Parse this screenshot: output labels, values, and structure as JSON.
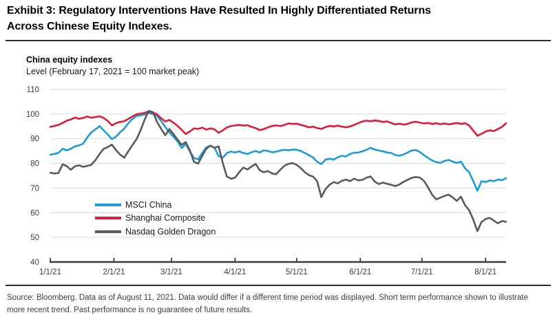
{
  "exhibit": {
    "title_line1": "Exhibit 3: Regulatory Interventions Have Resulted In Highly Differentiated Returns",
    "title_line2": "Across Chinese Equity Indexes."
  },
  "chart_header": {
    "title": "China equity indexes",
    "subtitle": "Level (February 17, 2021 = 100 market peak)"
  },
  "footer": {
    "source": "Source: Bloomberg. Data as of August 11, 2021. Data would differ if a different time period was displayed. Short term performance shown to illustrate more recent trend. Past performance is no guarantee of future results."
  },
  "colors": {
    "msci_blue": "#1b9cd9",
    "shanghai_red": "#e01a3b",
    "nasdaq_gray": "#58595b",
    "grid": "#d9d9d9",
    "axis": "#3a3a3a",
    "rule": "#2b2b2b"
  },
  "chart_data": {
    "type": "line",
    "title": "China equity indexes",
    "subtitle": "Level (February 17, 2021 = 100 market peak)",
    "ylim": [
      40,
      110
    ],
    "yticks": [
      110,
      100,
      90,
      80,
      70,
      60,
      50,
      40
    ],
    "grid": true,
    "legend_position": "inside-lower-left",
    "x_unit": "days since 1/1/21; data through 8/11/21",
    "xtick_days": [
      0,
      31,
      59,
      90,
      120,
      151,
      181,
      212
    ],
    "xtick_labels": [
      "1/1/21",
      "2/1/21",
      "3/1/21",
      "4/1/21",
      "5/1/21",
      "6/1/21",
      "7/1/21",
      "8/1/21"
    ],
    "x_days": [
      0,
      2,
      4,
      6,
      8,
      10,
      12,
      14,
      16,
      18,
      20,
      22,
      24,
      26,
      28,
      30,
      32,
      34,
      36,
      38,
      40,
      42,
      44,
      46,
      48,
      50,
      52,
      54,
      56,
      58,
      60,
      62,
      64,
      66,
      68,
      70,
      72,
      74,
      76,
      78,
      80,
      82,
      84,
      86,
      88,
      90,
      92,
      94,
      96,
      98,
      100,
      102,
      104,
      106,
      108,
      110,
      112,
      114,
      116,
      118,
      120,
      122,
      124,
      126,
      128,
      130,
      132,
      134,
      136,
      138,
      140,
      142,
      144,
      146,
      148,
      150,
      152,
      154,
      156,
      158,
      160,
      162,
      164,
      166,
      168,
      170,
      172,
      174,
      176,
      178,
      180,
      182,
      184,
      186,
      188,
      190,
      192,
      194,
      196,
      198,
      200,
      202,
      204,
      206,
      208,
      210,
      212,
      214,
      216,
      218,
      220,
      222
    ],
    "series": [
      {
        "name": "MSCI China",
        "color": "#1b9cd9",
        "values": [
          83.5,
          83.8,
          84.3,
          85.9,
          85.3,
          85.9,
          86.9,
          87.3,
          88.0,
          90.5,
          92.6,
          93.8,
          95.1,
          93.4,
          91.7,
          89.8,
          90.8,
          92.6,
          94.1,
          96.3,
          98.0,
          99.2,
          99.5,
          99.8,
          100.4,
          100.0,
          99.3,
          97.2,
          94.8,
          92.6,
          90.8,
          88.9,
          86.2,
          87.9,
          84.8,
          82.2,
          81.6,
          84.2,
          86.5,
          87.2,
          86.2,
          83.0,
          82.3,
          84.2,
          84.8,
          84.4,
          84.9,
          84.2,
          83.8,
          84.5,
          85.0,
          84.4,
          85.3,
          85.0,
          84.5,
          84.7,
          85.2,
          85.5,
          85.3,
          85.6,
          85.5,
          85.0,
          84.2,
          83.3,
          82.4,
          80.6,
          79.7,
          81.5,
          81.9,
          81.5,
          82.5,
          83.1,
          82.8,
          83.8,
          84.3,
          84.4,
          84.9,
          85.5,
          86.3,
          85.6,
          85.2,
          84.9,
          84.4,
          84.2,
          83.4,
          83.1,
          83.6,
          84.4,
          85.2,
          85.4,
          84.6,
          83.3,
          82.2,
          81.2,
          80.5,
          80.2,
          81.0,
          81.4,
          80.7,
          80.2,
          80.7,
          78.0,
          76.4,
          72.8,
          68.9,
          72.8,
          72.4,
          73.1,
          72.8,
          73.4,
          73.2,
          74.0
        ]
      },
      {
        "name": "Shanghai Composite",
        "color": "#e01a3b",
        "values": [
          94.8,
          95.2,
          95.6,
          96.4,
          97.3,
          97.8,
          98.6,
          98.1,
          98.4,
          99.0,
          98.5,
          98.8,
          99.1,
          98.4,
          97.2,
          95.4,
          96.3,
          96.8,
          97.1,
          98.0,
          99.0,
          99.9,
          100.2,
          100.5,
          101.1,
          100.6,
          99.9,
          98.3,
          97.0,
          97.6,
          96.5,
          95.2,
          93.6,
          91.9,
          93.0,
          94.2,
          94.0,
          94.5,
          93.7,
          94.2,
          93.8,
          92.4,
          93.4,
          94.6,
          95.1,
          95.4,
          95.6,
          95.3,
          95.5,
          94.8,
          94.3,
          93.5,
          93.9,
          94.6,
          95.2,
          95.4,
          95.1,
          95.6,
          96.2,
          96.0,
          96.1,
          95.6,
          95.2,
          94.6,
          94.9,
          94.3,
          94.0,
          94.7,
          95.2,
          95.0,
          95.3,
          94.9,
          94.6,
          95.0,
          95.6,
          96.3,
          97.0,
          97.3,
          97.1,
          97.4,
          97.2,
          96.8,
          97.0,
          96.4,
          95.8,
          96.1,
          95.7,
          96.0,
          96.6,
          96.9,
          96.5,
          96.2,
          96.4,
          96.0,
          96.3,
          95.9,
          96.2,
          95.8,
          96.1,
          96.4,
          96.0,
          96.3,
          95.4,
          93.3,
          91.2,
          92.0,
          92.9,
          93.4,
          93.1,
          93.9,
          94.8,
          96.3
        ]
      },
      {
        "name": "Nasdaq Golden Dragon",
        "color": "#58595b",
        "values": [
          76.2,
          75.9,
          76.1,
          79.6,
          78.9,
          77.4,
          78.8,
          79.2,
          78.6,
          79.0,
          79.4,
          81.3,
          83.8,
          85.9,
          86.6,
          87.6,
          85.4,
          83.6,
          82.3,
          84.9,
          87.4,
          89.8,
          93.4,
          97.8,
          101.3,
          100.8,
          96.8,
          94.0,
          91.4,
          93.9,
          91.9,
          89.6,
          87.5,
          88.6,
          85.2,
          80.6,
          79.9,
          83.0,
          85.9,
          87.2,
          86.3,
          86.9,
          80.2,
          74.7,
          73.8,
          74.2,
          76.4,
          78.3,
          77.5,
          78.7,
          79.8,
          77.2,
          76.4,
          76.9,
          75.9,
          75.6,
          77.4,
          79.0,
          79.8,
          80.1,
          79.4,
          78.1,
          76.4,
          75.2,
          74.6,
          72.7,
          66.3,
          69.5,
          71.3,
          72.4,
          71.9,
          72.9,
          73.4,
          72.8,
          73.8,
          73.1,
          73.3,
          74.2,
          74.7,
          72.6,
          71.6,
          72.2,
          71.7,
          71.3,
          70.8,
          71.4,
          72.5,
          73.3,
          74.1,
          74.5,
          74.2,
          72.9,
          70.2,
          67.3,
          65.4,
          66.1,
          66.8,
          67.3,
          66.2,
          64.8,
          66.5,
          63.0,
          61.0,
          57.2,
          52.5,
          56.2,
          57.4,
          57.9,
          56.8,
          55.7,
          56.6,
          56.3
        ]
      }
    ]
  }
}
